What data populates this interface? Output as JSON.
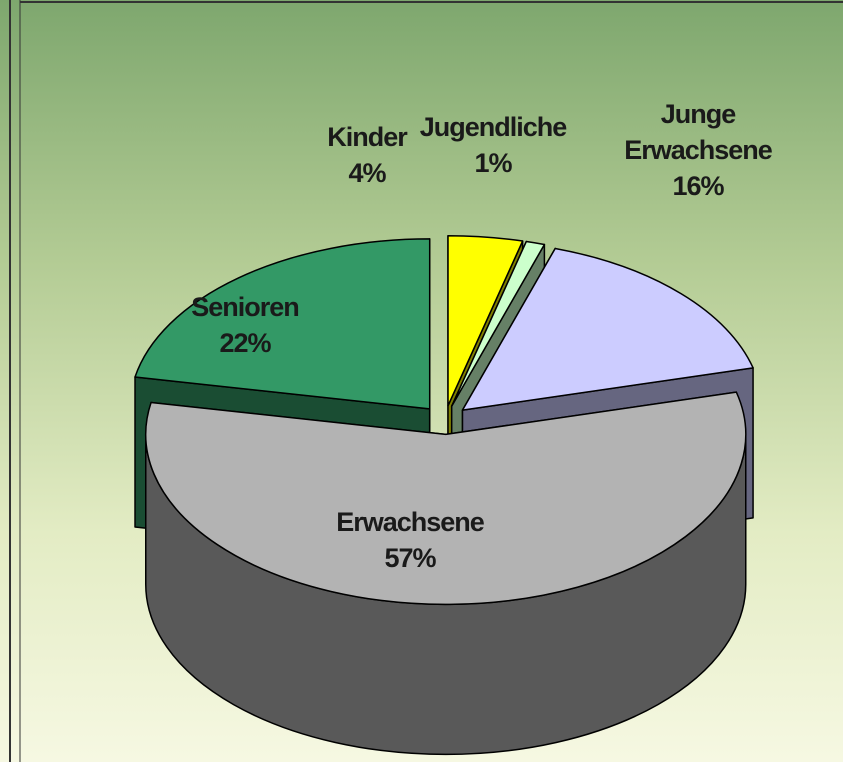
{
  "chart_data": {
    "type": "pie",
    "categories": [
      "Kinder",
      "Jugendliche",
      "Junge Erwachsene",
      "Erwachsene",
      "Senioren"
    ],
    "values": [
      4,
      1,
      16,
      57,
      22
    ],
    "value_labels": [
      "4%",
      "1%",
      "16%",
      "57%",
      "22%"
    ],
    "colors": [
      "#ffff00",
      "#ccffcc",
      "#ccccff",
      "#b3b3b3",
      "#339966"
    ],
    "side_colors": [
      "#808000",
      "#668066",
      "#666680",
      "#595959",
      "#1a4d33"
    ]
  }
}
